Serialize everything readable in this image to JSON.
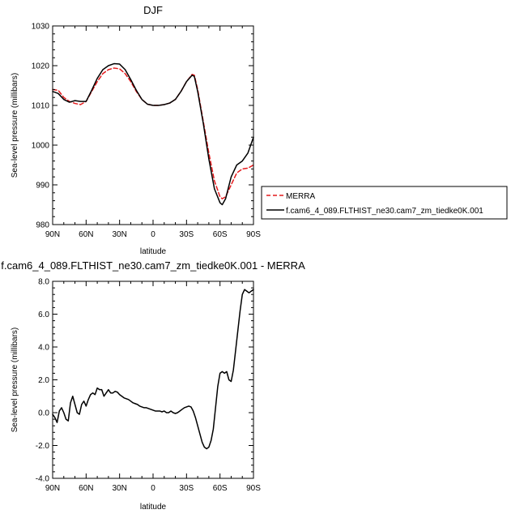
{
  "chart_data": [
    {
      "type": "line",
      "title": "DJF",
      "xlabel": "latitude",
      "ylabel": "Sea-level pressure (millibars)",
      "xlim": [
        -90,
        90
      ],
      "ylim": [
        980,
        1030
      ],
      "xticks": [
        -90,
        -60,
        -30,
        0,
        30,
        60,
        90
      ],
      "xtick_labels": [
        "90N",
        "60N",
        "30N",
        "0",
        "30S",
        "60S",
        "90S"
      ],
      "yticks": [
        980,
        990,
        1000,
        1010,
        1020,
        1030
      ],
      "ytick_labels": [
        "980",
        "990",
        "1000",
        "1010",
        "1020",
        "1030"
      ],
      "grid": false,
      "legend_position": "right",
      "series": [
        {
          "name": "MERRA",
          "color": "#e41a1c",
          "dash": "dashed",
          "x": [
            -90,
            -85,
            -80,
            -75,
            -70,
            -65,
            -60,
            -55,
            -50,
            -45,
            -40,
            -35,
            -30,
            -25,
            -20,
            -15,
            -10,
            -5,
            0,
            5,
            10,
            15,
            20,
            25,
            30,
            35,
            37,
            40,
            45,
            50,
            55,
            60,
            62,
            65,
            70,
            75,
            80,
            85,
            90
          ],
          "y": [
            1014,
            1013.8,
            1012,
            1011,
            1010.5,
            1010.2,
            1011,
            1013.5,
            1016,
            1018,
            1019,
            1019.4,
            1019.2,
            1018,
            1016,
            1013.5,
            1011.5,
            1010.3,
            1010,
            1010,
            1010.2,
            1010.6,
            1011.5,
            1013.5,
            1016,
            1017.8,
            1017.6,
            1014,
            1006,
            998,
            991,
            987,
            986.5,
            987,
            990,
            993,
            994,
            994.2,
            995
          ]
        },
        {
          "name": "f.cam6_4_089.FLTHIST_ne30.cam7_zm_tiedke0K.001",
          "color": "#000000",
          "dash": "solid",
          "x": [
            -90,
            -85,
            -80,
            -75,
            -70,
            -65,
            -60,
            -55,
            -50,
            -45,
            -40,
            -35,
            -30,
            -25,
            -20,
            -15,
            -10,
            -5,
            0,
            5,
            10,
            15,
            20,
            25,
            30,
            35,
            37,
            40,
            45,
            50,
            55,
            60,
            62,
            65,
            70,
            75,
            80,
            85,
            90
          ],
          "y": [
            1013.5,
            1013,
            1011.5,
            1010.8,
            1011.2,
            1011,
            1011,
            1013.8,
            1016.8,
            1019,
            1020,
            1020.5,
            1020.4,
            1019,
            1016.5,
            1013.8,
            1011.5,
            1010.3,
            1010,
            1010,
            1010.2,
            1010.6,
            1011.5,
            1013.5,
            1016,
            1017.6,
            1017.3,
            1013.5,
            1005.5,
            996.5,
            989,
            985.5,
            985,
            986.5,
            992,
            995,
            996,
            998,
            1002
          ]
        }
      ]
    },
    {
      "type": "line",
      "title": "f.cam6_4_089.FLTHIST_ne30.cam7_zm_tiedke0K.001 - MERRA",
      "xlabel": "latitude",
      "ylabel": "Sea-level pressure (millibars)",
      "xlim": [
        -90,
        90
      ],
      "ylim": [
        -4,
        8
      ],
      "xticks": [
        -90,
        -60,
        -30,
        0,
        30,
        60,
        90
      ],
      "xtick_labels": [
        "90N",
        "60N",
        "30N",
        "0",
        "30S",
        "60S",
        "90S"
      ],
      "yticks": [
        -4,
        -2,
        0,
        2,
        4,
        6,
        8
      ],
      "ytick_labels": [
        "-4.0",
        "-2.0",
        "0.0",
        "2.0",
        "4.0",
        "6.0",
        "8.0"
      ],
      "grid": false,
      "series": [
        {
          "color": "#000000",
          "dash": "solid",
          "x": [
            -90,
            -88,
            -86,
            -84,
            -82,
            -80,
            -78,
            -76,
            -74,
            -72,
            -70,
            -68,
            -66,
            -64,
            -62,
            -60,
            -58,
            -56,
            -54,
            -52,
            -50,
            -48,
            -46,
            -44,
            -42,
            -40,
            -38,
            -36,
            -34,
            -32,
            -30,
            -28,
            -26,
            -24,
            -22,
            -20,
            -18,
            -16,
            -14,
            -12,
            -10,
            -8,
            -6,
            -4,
            -2,
            0,
            2,
            4,
            6,
            8,
            10,
            12,
            14,
            16,
            18,
            20,
            22,
            24,
            26,
            28,
            30,
            32,
            34,
            36,
            38,
            40,
            42,
            44,
            46,
            48,
            50,
            52,
            54,
            56,
            58,
            60,
            62,
            64,
            66,
            68,
            70,
            72,
            74,
            76,
            78,
            80,
            82,
            84,
            86,
            88,
            90
          ],
          "y": [
            -0.1,
            -0.3,
            -0.6,
            0.1,
            0.3,
            0.0,
            -0.4,
            -0.5,
            0.6,
            1.0,
            0.5,
            0.0,
            -0.1,
            0.5,
            0.7,
            0.4,
            0.8,
            1.1,
            1.2,
            1.1,
            1.5,
            1.4,
            1.4,
            1.0,
            1.2,
            1.4,
            1.2,
            1.2,
            1.3,
            1.25,
            1.1,
            1.0,
            0.9,
            0.85,
            0.8,
            0.7,
            0.6,
            0.55,
            0.5,
            0.4,
            0.35,
            0.3,
            0.3,
            0.25,
            0.2,
            0.15,
            0.1,
            0.1,
            0.1,
            0.05,
            0.1,
            0.0,
            0.0,
            0.1,
            0.0,
            -0.05,
            0.0,
            0.1,
            0.2,
            0.3,
            0.35,
            0.4,
            0.35,
            0.1,
            -0.3,
            -0.8,
            -1.3,
            -1.8,
            -2.1,
            -2.2,
            -2.1,
            -1.7,
            -1.0,
            0.3,
            1.6,
            2.4,
            2.5,
            2.4,
            2.5,
            2.0,
            1.9,
            2.6,
            3.8,
            5.0,
            6.2,
            7.2,
            7.5,
            7.4,
            7.3,
            7.4,
            7.5
          ]
        }
      ]
    }
  ]
}
